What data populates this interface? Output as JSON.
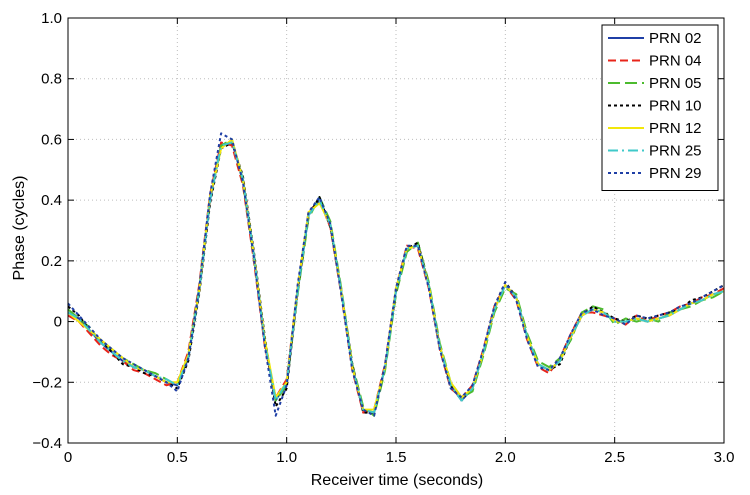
{
  "chart_data": {
    "type": "line",
    "title": "",
    "xlabel": "Receiver time (seconds)",
    "ylabel": "Phase (cycles)",
    "xlim": [
      0,
      3.0
    ],
    "ylim": [
      -0.4,
      1.0
    ],
    "grid": true,
    "legend_position": "top-right",
    "x_ticks": [
      "0",
      "0.5",
      "1.0",
      "1.5",
      "2.0",
      "2.5",
      "3.0"
    ],
    "x_tick_values": [
      0,
      0.5,
      1.0,
      1.5,
      2.0,
      2.5,
      3.0
    ],
    "y_ticks": [
      "−0.4",
      "−0.2",
      "0",
      "0.2",
      "0.4",
      "0.6",
      "0.8",
      "1.0"
    ],
    "y_tick_values": [
      -0.4,
      -0.2,
      0,
      0.2,
      0.4,
      0.6,
      0.8,
      1.0
    ],
    "x": [
      0,
      0.05,
      0.1,
      0.15,
      0.2,
      0.25,
      0.3,
      0.35,
      0.4,
      0.45,
      0.5,
      0.55,
      0.6,
      0.65,
      0.7,
      0.75,
      0.8,
      0.85,
      0.9,
      0.95,
      1.0,
      1.05,
      1.1,
      1.15,
      1.2,
      1.25,
      1.3,
      1.35,
      1.4,
      1.45,
      1.5,
      1.55,
      1.6,
      1.65,
      1.7,
      1.75,
      1.8,
      1.85,
      1.9,
      1.95,
      2.0,
      2.05,
      2.1,
      2.15,
      2.2,
      2.25,
      2.3,
      2.35,
      2.4,
      2.45,
      2.5,
      2.55,
      2.6,
      2.65,
      2.7,
      2.75,
      2.8,
      2.85,
      2.9,
      2.95,
      3.0
    ],
    "series": [
      {
        "name": "PRN 02",
        "color": "#1f3fa6",
        "dash": "solid",
        "values": [
          0.03,
          0.01,
          -0.03,
          -0.07,
          -0.1,
          -0.13,
          -0.15,
          -0.16,
          -0.18,
          -0.2,
          -0.21,
          -0.12,
          0.1,
          0.4,
          0.58,
          0.59,
          0.47,
          0.22,
          -0.07,
          -0.26,
          -0.2,
          0.1,
          0.35,
          0.4,
          0.32,
          0.1,
          -0.15,
          -0.29,
          -0.3,
          -0.15,
          0.1,
          0.24,
          0.25,
          0.12,
          -0.08,
          -0.21,
          -0.26,
          -0.22,
          -0.1,
          0.04,
          0.12,
          0.08,
          -0.05,
          -0.14,
          -0.16,
          -0.13,
          -0.05,
          0.02,
          0.04,
          0.03,
          0.0,
          0.0,
          0.01,
          0.0,
          0.01,
          0.02,
          0.04,
          0.06,
          0.07,
          0.09,
          0.1
        ]
      },
      {
        "name": "PRN 04",
        "color": "#e8241a",
        "dash": "8,4",
        "values": [
          0.02,
          0.0,
          -0.04,
          -0.08,
          -0.11,
          -0.13,
          -0.16,
          -0.17,
          -0.19,
          -0.21,
          -0.2,
          -0.1,
          0.12,
          0.42,
          0.59,
          0.58,
          0.45,
          0.2,
          -0.08,
          -0.25,
          -0.19,
          0.11,
          0.36,
          0.4,
          0.31,
          0.09,
          -0.16,
          -0.3,
          -0.29,
          -0.14,
          0.11,
          0.25,
          0.24,
          0.11,
          -0.09,
          -0.22,
          -0.25,
          -0.21,
          -0.09,
          0.05,
          0.12,
          0.07,
          -0.06,
          -0.15,
          -0.17,
          -0.12,
          -0.04,
          0.03,
          0.03,
          0.02,
          0.01,
          -0.01,
          0.02,
          0.0,
          0.02,
          0.03,
          0.05,
          0.06,
          0.08,
          0.09,
          0.11
        ]
      },
      {
        "name": "PRN 05",
        "color": "#4cbb2e",
        "dash": "12,5",
        "values": [
          0.04,
          0.01,
          -0.02,
          -0.07,
          -0.09,
          -0.12,
          -0.14,
          -0.16,
          -0.17,
          -0.19,
          -0.21,
          -0.11,
          0.11,
          0.41,
          0.58,
          0.6,
          0.46,
          0.21,
          -0.06,
          -0.26,
          -0.21,
          0.09,
          0.34,
          0.41,
          0.33,
          0.11,
          -0.14,
          -0.28,
          -0.31,
          -0.16,
          0.09,
          0.23,
          0.26,
          0.13,
          -0.07,
          -0.2,
          -0.25,
          -0.23,
          -0.11,
          0.03,
          0.11,
          0.09,
          -0.04,
          -0.13,
          -0.15,
          -0.12,
          -0.06,
          0.03,
          0.05,
          0.04,
          -0.01,
          0.01,
          0.0,
          0.01,
          0.0,
          0.03,
          0.04,
          0.05,
          0.07,
          0.08,
          0.1
        ]
      },
      {
        "name": "PRN 10",
        "color": "#000000",
        "dash": "3,3",
        "values": [
          0.05,
          0.02,
          -0.03,
          -0.06,
          -0.1,
          -0.14,
          -0.15,
          -0.17,
          -0.18,
          -0.2,
          -0.22,
          -0.13,
          0.09,
          0.39,
          0.57,
          0.59,
          0.48,
          0.23,
          -0.05,
          -0.28,
          -0.22,
          0.1,
          0.35,
          0.41,
          0.31,
          0.1,
          -0.14,
          -0.3,
          -0.3,
          -0.15,
          0.1,
          0.24,
          0.26,
          0.12,
          -0.08,
          -0.21,
          -0.26,
          -0.21,
          -0.1,
          0.05,
          0.13,
          0.08,
          -0.05,
          -0.14,
          -0.16,
          -0.14,
          -0.05,
          0.02,
          0.05,
          0.03,
          0.01,
          0.0,
          0.02,
          0.01,
          0.02,
          0.03,
          0.04,
          0.07,
          0.08,
          0.1,
          0.12
        ]
      },
      {
        "name": "PRN 12",
        "color": "#f2e70a",
        "dash": "solid",
        "values": [
          0.03,
          0.0,
          -0.03,
          -0.06,
          -0.09,
          -0.12,
          -0.15,
          -0.16,
          -0.18,
          -0.2,
          -0.2,
          -0.11,
          0.1,
          0.41,
          0.57,
          0.6,
          0.47,
          0.22,
          -0.06,
          -0.25,
          -0.2,
          0.11,
          0.36,
          0.39,
          0.32,
          0.1,
          -0.15,
          -0.29,
          -0.29,
          -0.15,
          0.11,
          0.24,
          0.25,
          0.12,
          -0.08,
          -0.2,
          -0.25,
          -0.22,
          -0.1,
          0.04,
          0.12,
          0.08,
          -0.05,
          -0.14,
          -0.16,
          -0.13,
          -0.05,
          0.02,
          0.04,
          0.03,
          0.0,
          0.0,
          0.01,
          0.0,
          0.01,
          0.02,
          0.04,
          0.06,
          0.07,
          0.09,
          0.1
        ]
      },
      {
        "name": "PRN 25",
        "color": "#3fc9c9",
        "dash": "10,4,2,4",
        "values": [
          0.03,
          0.01,
          -0.03,
          -0.07,
          -0.1,
          -0.13,
          -0.15,
          -0.16,
          -0.18,
          -0.19,
          -0.21,
          -0.12,
          0.1,
          0.4,
          0.58,
          0.59,
          0.47,
          0.22,
          -0.07,
          -0.26,
          -0.2,
          0.1,
          0.35,
          0.4,
          0.32,
          0.1,
          -0.15,
          -0.29,
          -0.3,
          -0.15,
          0.1,
          0.24,
          0.25,
          0.12,
          -0.08,
          -0.21,
          -0.26,
          -0.22,
          -0.1,
          0.04,
          0.12,
          0.08,
          -0.05,
          -0.14,
          -0.16,
          -0.13,
          -0.05,
          0.02,
          0.04,
          0.03,
          0.0,
          0.0,
          0.01,
          0.0,
          0.01,
          0.02,
          0.04,
          0.06,
          0.07,
          0.09,
          0.1
        ]
      },
      {
        "name": "PRN 29",
        "color": "#1f3fa6",
        "dash": "3,3",
        "values": [
          0.06,
          0.02,
          -0.02,
          -0.06,
          -0.09,
          -0.12,
          -0.14,
          -0.16,
          -0.18,
          -0.2,
          -0.23,
          -0.12,
          0.11,
          0.42,
          0.62,
          0.6,
          0.46,
          0.21,
          -0.08,
          -0.31,
          -0.21,
          0.12,
          0.36,
          0.41,
          0.32,
          0.09,
          -0.16,
          -0.29,
          -0.31,
          -0.14,
          0.11,
          0.25,
          0.25,
          0.11,
          -0.09,
          -0.22,
          -0.25,
          -0.21,
          -0.09,
          0.05,
          0.13,
          0.07,
          -0.06,
          -0.15,
          -0.16,
          -0.12,
          -0.04,
          0.03,
          0.04,
          0.02,
          0.01,
          -0.01,
          0.02,
          0.01,
          0.02,
          0.03,
          0.05,
          0.06,
          0.08,
          0.1,
          0.12
        ]
      }
    ]
  }
}
